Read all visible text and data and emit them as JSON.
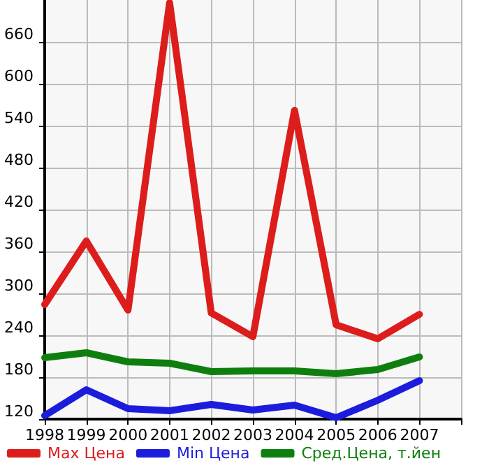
{
  "chart_data": {
    "type": "line",
    "x": [
      1998,
      1999,
      2000,
      2001,
      2002,
      2003,
      2004,
      2005,
      2006,
      2007
    ],
    "xlim": [
      1998,
      2008
    ],
    "xticks": [
      1998,
      1999,
      2000,
      2001,
      2002,
      2003,
      2004,
      2005,
      2006,
      2007,
      {
        "value": 2008,
        "label": null
      }
    ],
    "ylim": [
      120,
      720
    ],
    "yticks": [
      120,
      180,
      240,
      300,
      360,
      420,
      480,
      540,
      600,
      660
    ],
    "series": [
      {
        "name": "Max Цена",
        "color": "#dd1c1c",
        "values": [
          284,
          375,
          276,
          716,
          272,
          238,
          562,
          255,
          235,
          270
        ]
      },
      {
        "name": "Min Цена",
        "color": "#1c1cdd",
        "values": [
          125,
          162,
          135,
          132,
          141,
          133,
          140,
          122,
          147,
          175
        ]
      },
      {
        "name": "Сред.Цена, т.йен",
        "color": "#0e7f0e",
        "values": [
          208,
          215,
          202,
          200,
          188,
          189,
          189,
          185,
          191,
          209
        ]
      }
    ],
    "grid": true,
    "legend": "bottom",
    "marker": "none",
    "line_style": "solid"
  }
}
